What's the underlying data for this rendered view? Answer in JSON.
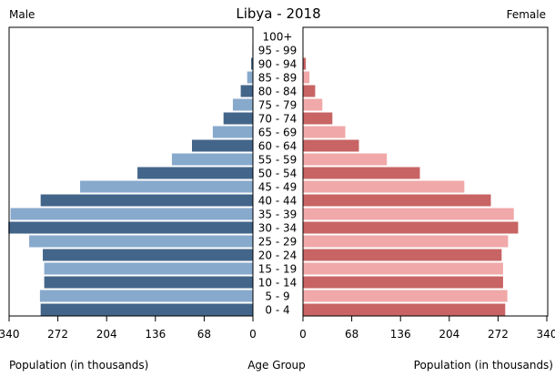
{
  "chart_data": {
    "type": "bar",
    "orientation": "horizontal-pyramid",
    "title": "Libya - 2018",
    "left_label": "Male",
    "right_label": "Female",
    "xlabel_left": "Population (in thousands)",
    "xlabel_center": "Age Group",
    "xlabel_right": "Population (in thousands)",
    "xlim": [
      0,
      340
    ],
    "ticks": [
      340,
      272,
      204,
      136,
      68,
      0
    ],
    "right_ticks": [
      0,
      68,
      136,
      204,
      272,
      340
    ],
    "grid": false,
    "categories": [
      "0 - 4",
      "5 - 9",
      "10 - 14",
      "15 - 19",
      "20 - 24",
      "25 - 29",
      "30 - 34",
      "35 - 39",
      "40 - 44",
      "45 - 49",
      "50 - 54",
      "55 - 59",
      "60 - 64",
      "65 - 69",
      "70 - 74",
      "75 - 79",
      "80 - 84",
      "85 - 89",
      "90 - 94",
      "95 - 99",
      "100+"
    ],
    "series": [
      {
        "name": "Male",
        "side": "left",
        "colors": [
          "#43658a",
          "#87a9cc"
        ],
        "values": [
          296,
          297,
          291,
          291,
          293,
          312,
          341,
          338,
          296,
          241,
          161,
          113,
          85,
          56,
          41,
          28,
          17,
          8,
          2.5,
          0.8,
          0.4
        ]
      },
      {
        "name": "Female",
        "side": "right",
        "colors": [
          "#c86464",
          "#f0a8a8"
        ],
        "values": [
          282,
          285,
          279,
          279,
          277,
          286,
          300,
          294,
          262,
          225,
          163,
          117,
          78,
          59,
          41,
          27,
          17,
          9,
          4,
          0.6,
          0.4
        ]
      }
    ]
  }
}
